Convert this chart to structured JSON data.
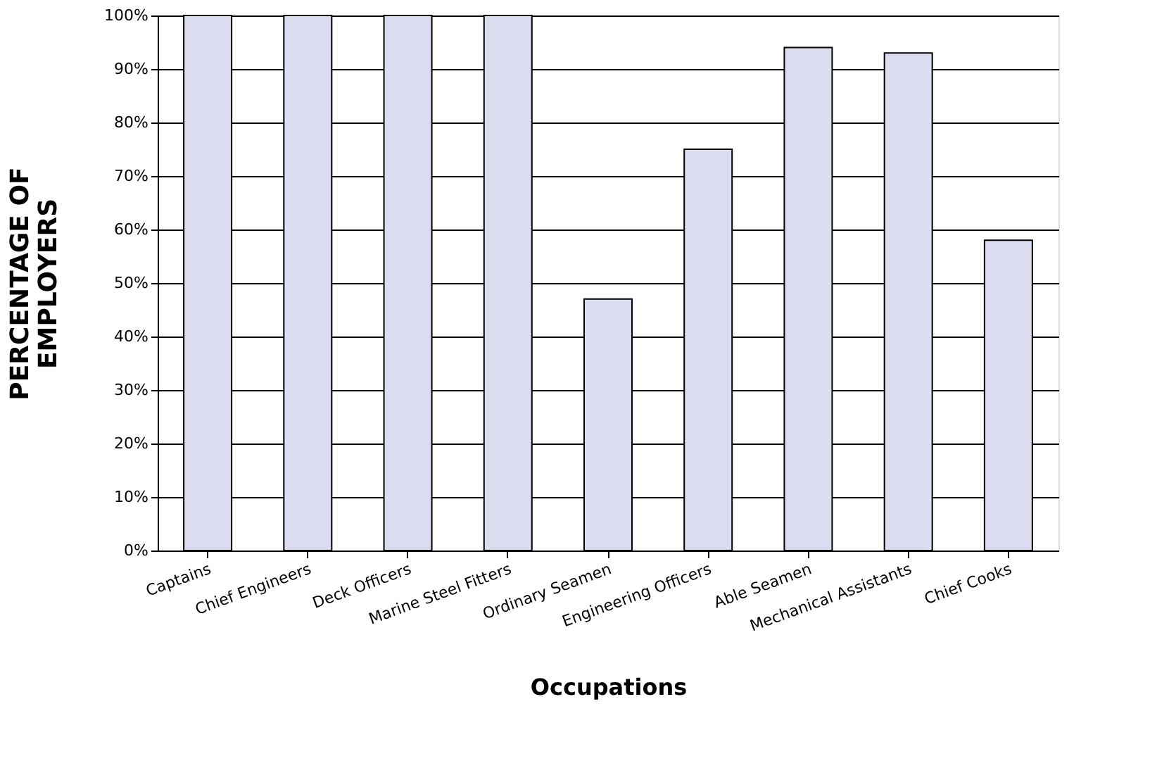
{
  "chart_data": {
    "type": "bar",
    "xlabel": "Occupations",
    "ylabel": "PERCENTAGE OF\nEMPLOYERS",
    "categories": [
      "Captains",
      "Chief Engineers",
      "Deck Officers",
      "Marine Steel Fitters",
      "Ordinary Seamen",
      "Engineering Officers",
      "Able Seamen",
      "Mechanical Assistants",
      "Chief Cooks"
    ],
    "values": [
      100,
      100,
      100,
      100,
      47,
      75,
      94,
      93,
      58
    ],
    "color": "#dcdcf0",
    "ylim": [
      0,
      100
    ],
    "yticks": [
      {
        "value": 0,
        "label": "0%"
      },
      {
        "value": 10,
        "label": "10%"
      },
      {
        "value": 20,
        "label": "20%"
      },
      {
        "value": 30,
        "label": "30%"
      },
      {
        "value": 40,
        "label": "40%"
      },
      {
        "value": 50,
        "label": "50%"
      },
      {
        "value": 60,
        "label": "60%"
      },
      {
        "value": 70,
        "label": "70%"
      },
      {
        "value": 80,
        "label": "80%"
      },
      {
        "value": 90,
        "label": "90%"
      },
      {
        "value": 100,
        "label": "100%"
      }
    ],
    "grid": "y"
  }
}
